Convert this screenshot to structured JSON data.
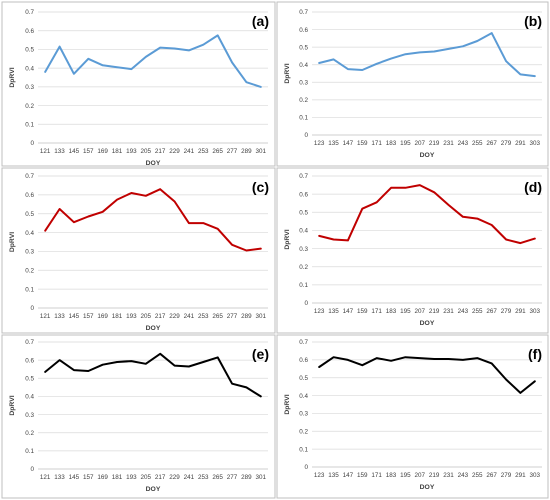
{
  "chart_data": [
    {
      "type": "line",
      "panel_label": "(a)",
      "xlabel": "DOY",
      "ylabel": "DpRVI",
      "ylim": [
        0,
        0.7
      ],
      "yticks": [
        "0",
        "0.1",
        "0.2",
        "0.3",
        "0.4",
        "0.5",
        "0.6",
        "0.7"
      ],
      "x": [
        "121",
        "133",
        "145",
        "157",
        "169",
        "181",
        "193",
        "205",
        "217",
        "229",
        "241",
        "253",
        "265",
        "277",
        "289",
        "301"
      ],
      "values": [
        0.38,
        0.515,
        0.37,
        0.45,
        0.415,
        0.405,
        0.395,
        0.46,
        0.51,
        0.505,
        0.495,
        0.525,
        0.575,
        0.43,
        0.325,
        0.3
      ],
      "color": "#5b9bd5",
      "grid": true
    },
    {
      "type": "line",
      "panel_label": "(b)",
      "xlabel": "DOY",
      "ylabel": "DpRVI",
      "ylim": [
        0,
        0.7
      ],
      "yticks": [
        "0",
        "0.1",
        "0.2",
        "0.3",
        "0.4",
        "0.5",
        "0.6",
        "0.7"
      ],
      "x": [
        "123",
        "135",
        "147",
        "159",
        "171",
        "183",
        "195",
        "207",
        "219",
        "231",
        "243",
        "255",
        "267",
        "279",
        "291",
        "303"
      ],
      "values": [
        0.41,
        0.43,
        0.375,
        0.37,
        0.405,
        0.435,
        0.46,
        0.47,
        0.475,
        0.49,
        0.505,
        0.535,
        0.58,
        0.42,
        0.345,
        0.335
      ],
      "color": "#5b9bd5",
      "grid": true
    },
    {
      "type": "line",
      "panel_label": "(c)",
      "xlabel": "DOY",
      "ylabel": "DpRVI",
      "ylim": [
        0,
        0.7
      ],
      "yticks": [
        "0",
        "0.1",
        "0.2",
        "0.3",
        "0.4",
        "0.5",
        "0.6",
        "0.7"
      ],
      "x": [
        "121",
        "133",
        "145",
        "157",
        "169",
        "181",
        "193",
        "205",
        "217",
        "229",
        "241",
        "253",
        "265",
        "277",
        "289",
        "301"
      ],
      "values": [
        0.41,
        0.525,
        0.455,
        0.485,
        0.51,
        0.575,
        0.61,
        0.595,
        0.63,
        0.565,
        0.45,
        0.45,
        0.42,
        0.335,
        0.305,
        0.315
      ],
      "color": "#c00000",
      "grid": true
    },
    {
      "type": "line",
      "panel_label": "(d)",
      "xlabel": "DOY",
      "ylabel": "DpRVI",
      "ylim": [
        0,
        0.7
      ],
      "yticks": [
        "0",
        "0.1",
        "0.2",
        "0.3",
        "0.4",
        "0.5",
        "0.6",
        "0.7"
      ],
      "x": [
        "123",
        "135",
        "147",
        "159",
        "171",
        "183",
        "195",
        "207",
        "219",
        "231",
        "243",
        "255",
        "267",
        "279",
        "291",
        "303"
      ],
      "values": [
        0.37,
        0.35,
        0.345,
        0.52,
        0.555,
        0.635,
        0.635,
        0.65,
        0.61,
        0.54,
        0.475,
        0.465,
        0.43,
        0.35,
        0.33,
        0.355
      ],
      "color": "#c00000",
      "grid": true
    },
    {
      "type": "line",
      "panel_label": "(e)",
      "xlabel": "DOY",
      "ylabel": "DpRVI",
      "ylim": [
        0,
        0.7
      ],
      "yticks": [
        "0",
        "0.1",
        "0.2",
        "0.3",
        "0.4",
        "0.5",
        "0.6",
        "0.7"
      ],
      "x": [
        "121",
        "133",
        "145",
        "157",
        "169",
        "181",
        "193",
        "205",
        "217",
        "229",
        "241",
        "253",
        "265",
        "277",
        "289",
        "301"
      ],
      "values": [
        0.535,
        0.6,
        0.545,
        0.54,
        0.575,
        0.59,
        0.595,
        0.58,
        0.635,
        0.57,
        0.565,
        0.59,
        0.615,
        0.47,
        0.45,
        0.4
      ],
      "color": "#000000",
      "grid": true
    },
    {
      "type": "line",
      "panel_label": "(f)",
      "xlabel": "DOY",
      "ylabel": "DpRVI",
      "ylim": [
        0,
        0.7
      ],
      "yticks": [
        "0",
        "0.1",
        "0.2",
        "0.3",
        "0.4",
        "0.5",
        "0.6",
        "0.7"
      ],
      "x": [
        "123",
        "135",
        "147",
        "159",
        "171",
        "183",
        "195",
        "207",
        "219",
        "231",
        "243",
        "255",
        "267",
        "279",
        "291",
        "303"
      ],
      "values": [
        0.56,
        0.615,
        0.6,
        0.57,
        0.61,
        0.595,
        0.615,
        0.61,
        0.605,
        0.605,
        0.6,
        0.61,
        0.58,
        0.49,
        0.415,
        0.48
      ],
      "color": "#000000",
      "grid": true
    }
  ]
}
